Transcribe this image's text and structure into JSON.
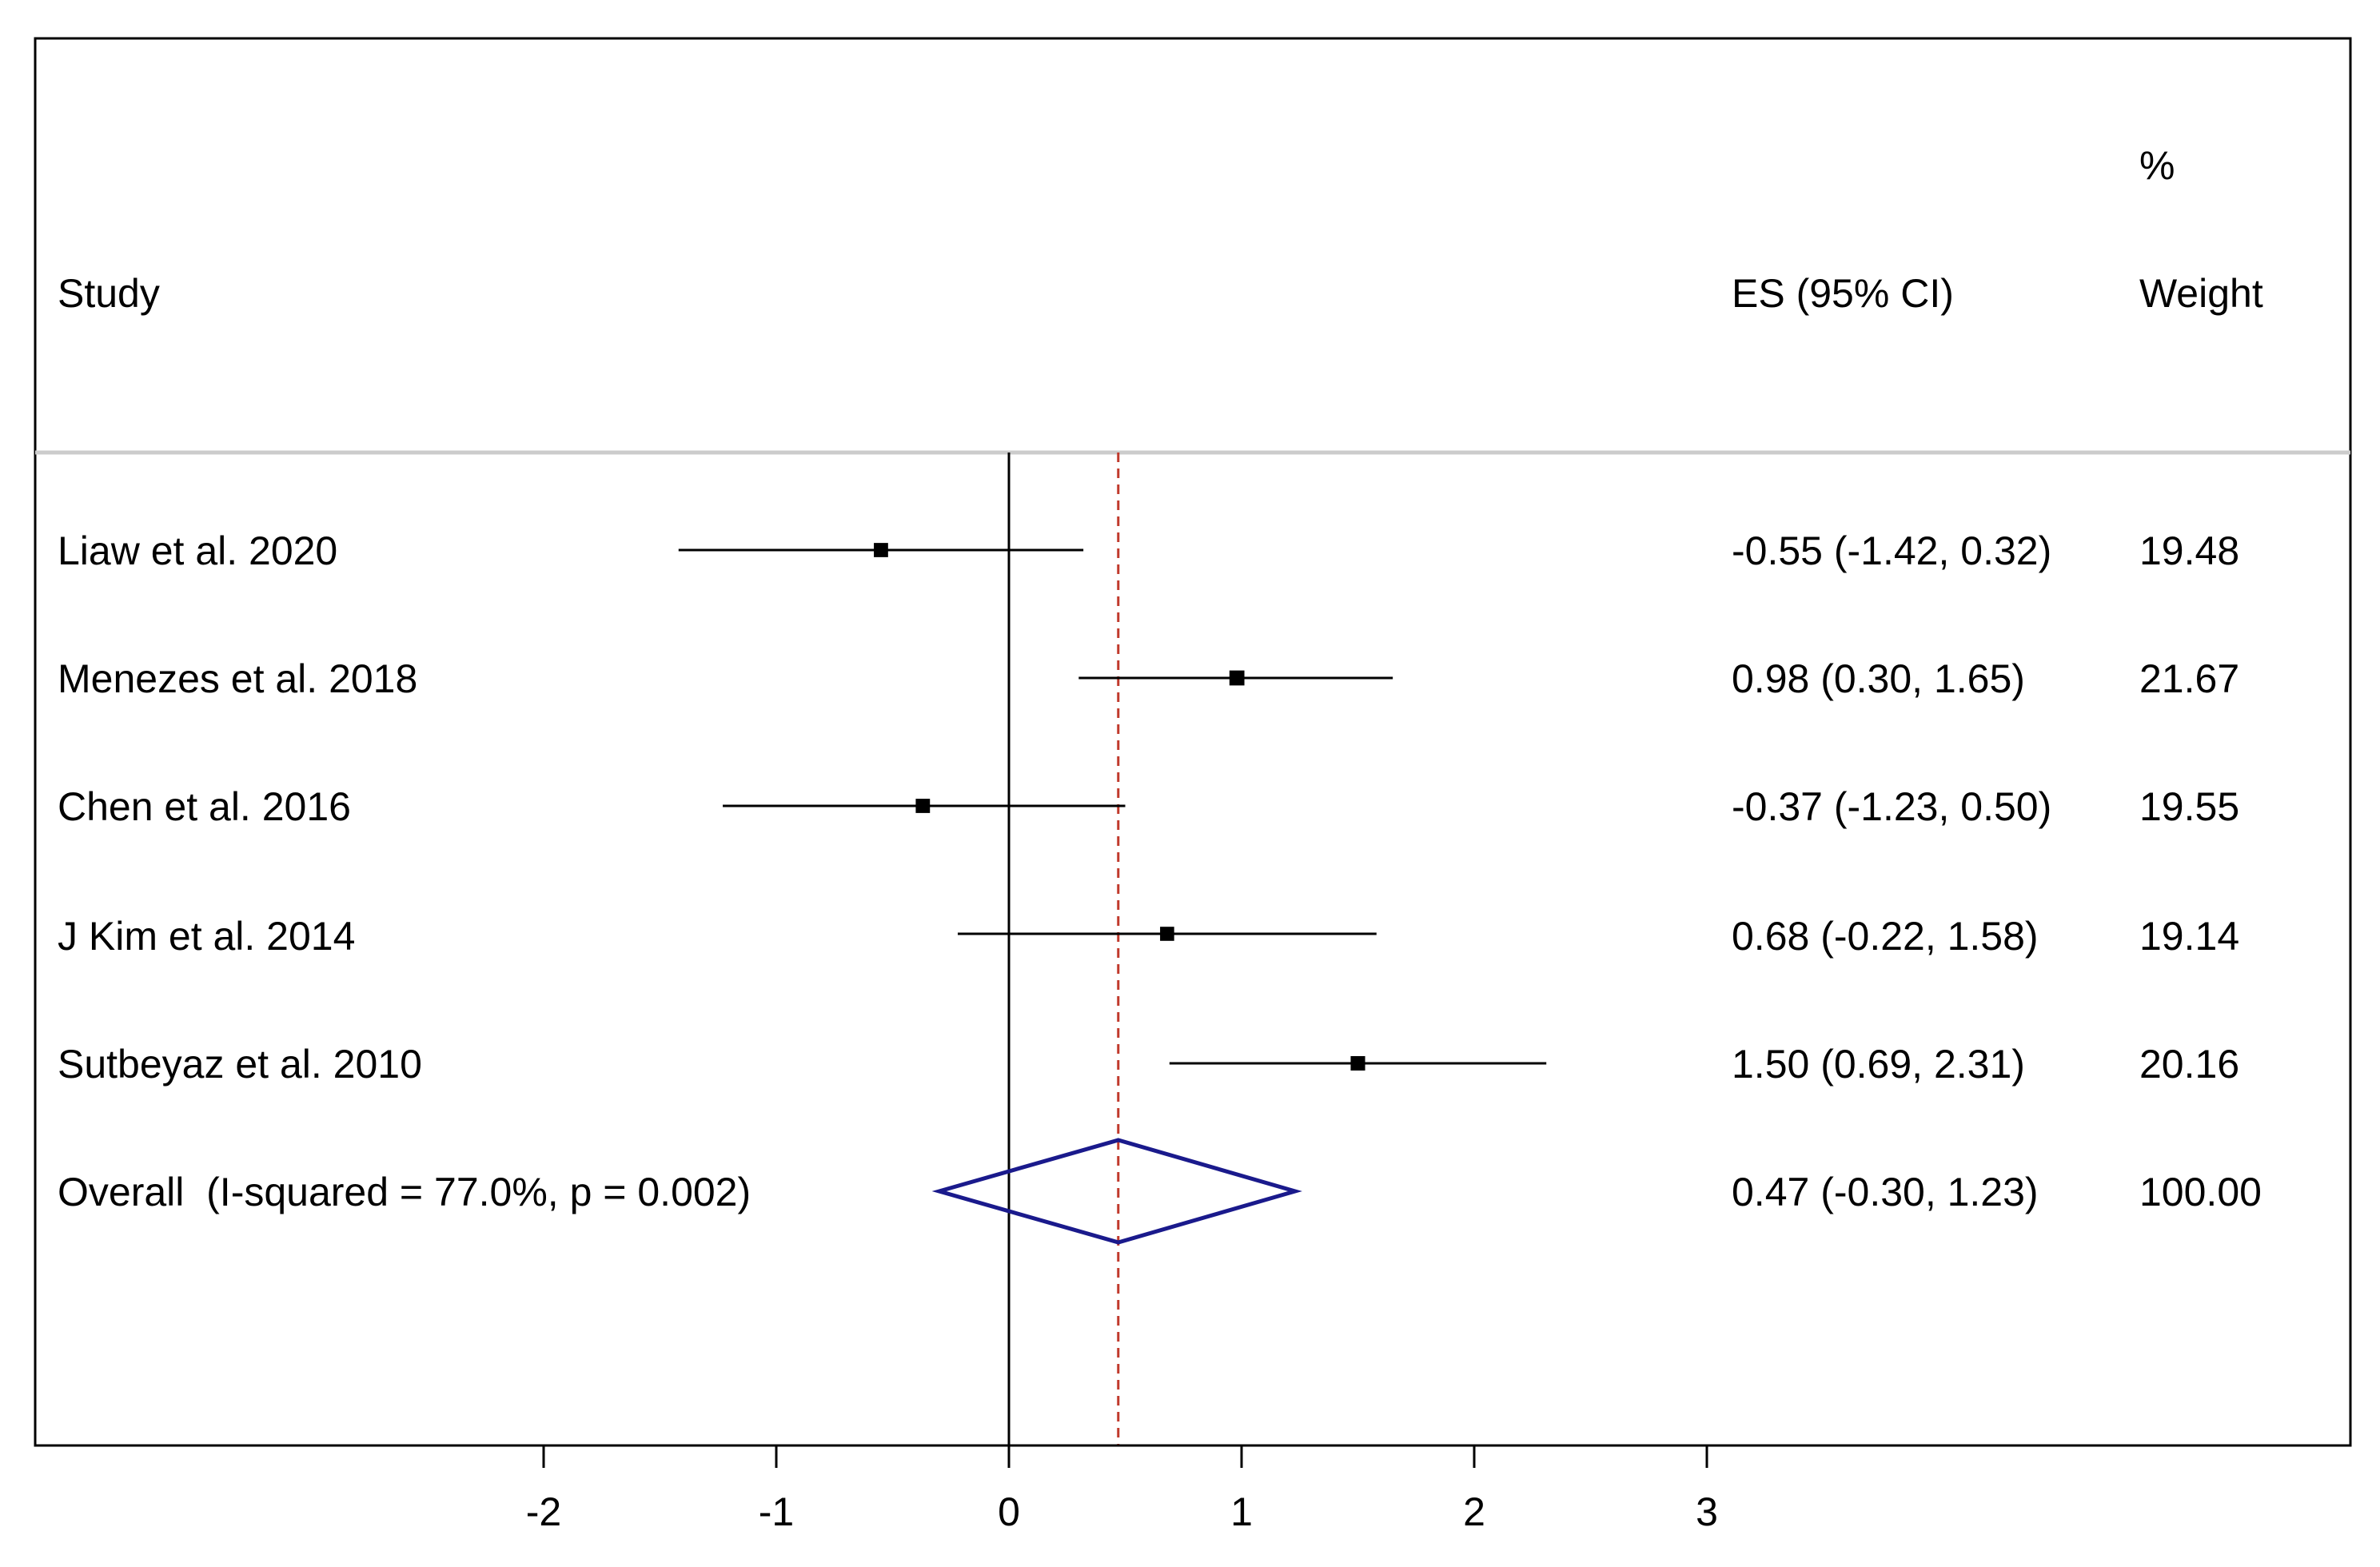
{
  "chart_data": {
    "type": "forest",
    "header": {
      "study": "Study",
      "es": "ES (95% CI)",
      "weight_line1": "%",
      "weight_line2": "Weight"
    },
    "studies": [
      {
        "label": "Liaw et al. 2020",
        "es": -0.55,
        "lo": -1.42,
        "hi": 0.32,
        "es_text": "-0.55 (-1.42, 0.32)",
        "weight": 19.48,
        "weight_text": "19.48"
      },
      {
        "label": "Menezes et al. 2018",
        "es": 0.98,
        "lo": 0.3,
        "hi": 1.65,
        "es_text": "0.98 (0.30, 1.65)",
        "weight": 21.67,
        "weight_text": "21.67"
      },
      {
        "label": "Chen et al. 2016",
        "es": -0.37,
        "lo": -1.23,
        "hi": 0.5,
        "es_text": "-0.37 (-1.23, 0.50)",
        "weight": 19.55,
        "weight_text": "19.55"
      },
      {
        "label": "J Kim et al. 2014",
        "es": 0.68,
        "lo": -0.22,
        "hi": 1.58,
        "es_text": "0.68 (-0.22, 1.58)",
        "weight": 19.14,
        "weight_text": "19.14"
      },
      {
        "label": "Sutbeyaz et al. 2010",
        "es": 1.5,
        "lo": 0.69,
        "hi": 2.31,
        "es_text": "1.50 (0.69, 2.31)",
        "weight": 20.16,
        "weight_text": "20.16"
      }
    ],
    "overall": {
      "label": "Overall  (I-squared = 77.0%, p = 0.002)",
      "es": 0.47,
      "lo": -0.3,
      "hi": 1.23,
      "es_text": "0.47 (-0.30, 1.23)",
      "weight": 100.0,
      "weight_text": "100.00"
    },
    "x_ticks": [
      {
        "value": -2,
        "label": "-2"
      },
      {
        "value": -1,
        "label": "-1"
      },
      {
        "value": 0,
        "label": "0"
      },
      {
        "value": 1,
        "label": "1"
      },
      {
        "value": 2,
        "label": "2"
      },
      {
        "value": 3,
        "label": "3"
      }
    ],
    "null_line": 0,
    "colors": {
      "overall_diamond": "#1a1a8c",
      "overall_line": "#c0392b",
      "separator": "#cccccc",
      "ci_line": "#000000"
    }
  }
}
